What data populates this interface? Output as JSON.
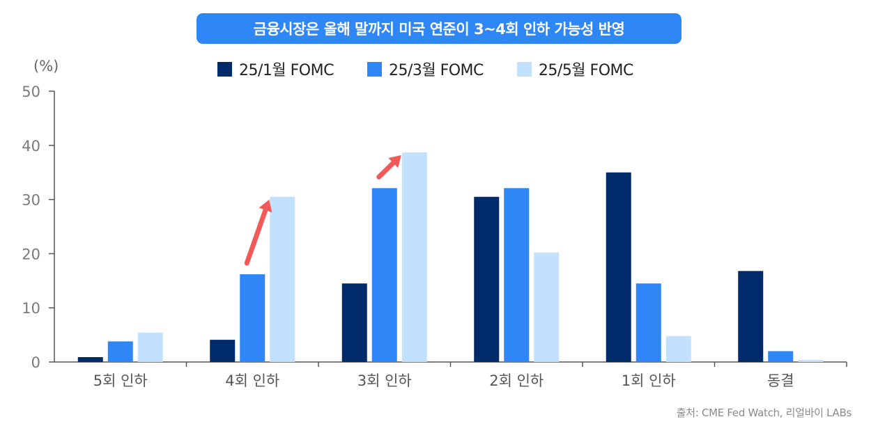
{
  "chart_data": {
    "type": "bar",
    "title": "금융시장은 올해 말까지 미국 연준이 3~4회 인하 가능성 반영",
    "ylabel": "(%)",
    "xlabel": "",
    "ylim": [
      0,
      50
    ],
    "yticks": [
      "0",
      "10",
      "20",
      "30",
      "40",
      "50"
    ],
    "grid": false,
    "legend_position": "top-center",
    "categories": [
      "5회 인하",
      "4회 인하",
      "3회 인하",
      "2회 인하",
      "1회 인하",
      "동결"
    ],
    "series": [
      {
        "name": "25/1월 FOMC",
        "color": "#002b6b",
        "values": [
          0.9,
          4.1,
          14.5,
          30.5,
          35.0,
          16.8
        ]
      },
      {
        "name": "25/3월 FOMC",
        "color": "#2f86f6",
        "values": [
          3.8,
          16.2,
          32.1,
          32.1,
          14.5,
          2.0
        ]
      },
      {
        "name": "25/5월 FOMC",
        "color": "#c2e0ff",
        "values": [
          5.4,
          30.5,
          38.7,
          20.2,
          4.8,
          0.4
        ]
      }
    ],
    "annotations": [
      {
        "type": "arrow",
        "color": "#f25a5a",
        "category": "4회 인하",
        "direction": "up-right"
      },
      {
        "type": "arrow",
        "color": "#f25a5a",
        "category": "3회 인하",
        "direction": "up-right"
      }
    ],
    "source": "출처: CME Fed Watch, 리얼바이 LABs"
  }
}
